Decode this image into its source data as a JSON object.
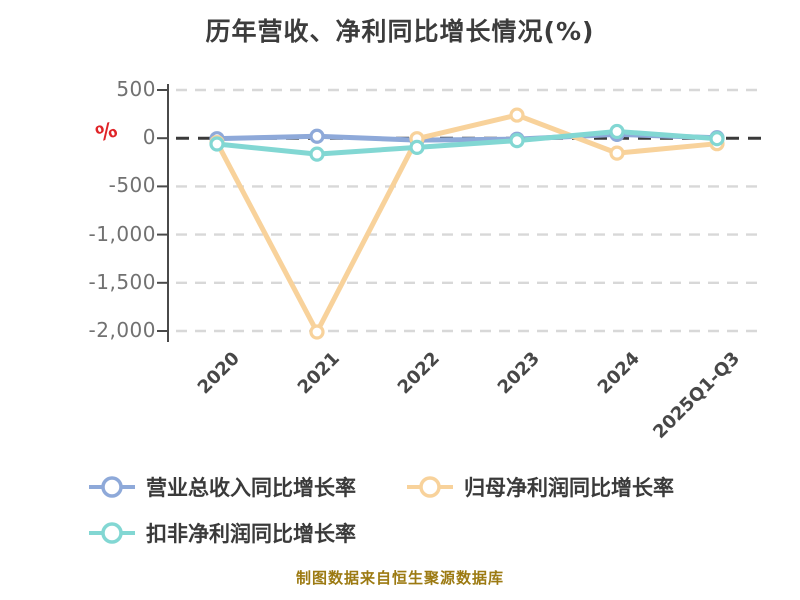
{
  "header": {
    "title": "历年营收、净利同比增长情况(%)"
  },
  "chart_data": {
    "type": "line",
    "title": "历年营收、净利同比增长情况(%)",
    "ylabel": "%",
    "ylabel_color": "#e02428",
    "categories": [
      "2020",
      "2021",
      "2022",
      "2023",
      "2024",
      "2025Q1-Q3"
    ],
    "series": [
      {
        "name": "营业总收入同比增长率",
        "color": "#8ea9d9",
        "values": [
          -5,
          20,
          -20,
          -10,
          40,
          5
        ]
      },
      {
        "name": "归母净利润同比增长率",
        "color": "#f8d29b",
        "values": [
          -45,
          -2010,
          -5,
          240,
          -155,
          -57
        ]
      },
      {
        "name": "扣非净利润同比增长率",
        "color": "#82d7d3",
        "values": [
          -60,
          -165,
          -95,
          -25,
          70,
          -5
        ]
      }
    ],
    "yticks": [
      500,
      0,
      -500,
      -1000,
      -1500,
      -2000
    ],
    "ylim": [
      -2100,
      600
    ],
    "grid": "dashed-horizontal",
    "zero_line": "dark-dashed",
    "marker": "circle-white-fill",
    "legend_position": "bottom-left"
  },
  "legend": {
    "items": [
      {
        "label": "营业总收入同比增长率",
        "color": "#8ea9d9"
      },
      {
        "label": "归母净利润同比增长率",
        "color": "#f8d29b"
      },
      {
        "label": "扣非净利润同比增长率",
        "color": "#82d7d3"
      }
    ]
  },
  "footer": {
    "source_note": "制图数据来自恒生聚源数据库",
    "color": "#9c7a12"
  }
}
